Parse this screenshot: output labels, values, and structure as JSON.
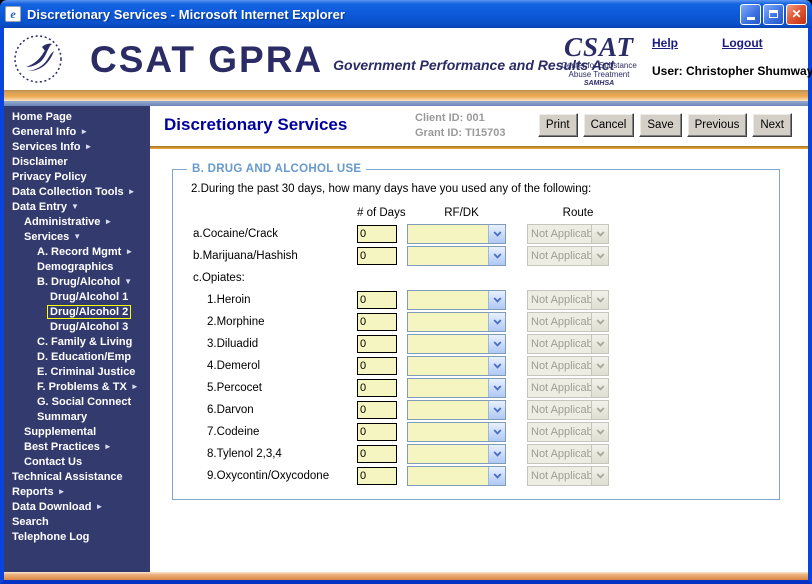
{
  "window": {
    "title": "Discretionary Services - Microsoft Internet Explorer"
  },
  "header": {
    "brand": "CSAT GPRA",
    "brand_subtitle": "Government Performance and Results Act",
    "csat_logo": {
      "acronym": "CSAT",
      "line1": "Center for Substance",
      "line2": "Abuse Treatment",
      "line3": "SAMHSA"
    },
    "help_label": "Help",
    "logout_label": "Logout",
    "user_label": "User: Christopher Shumway"
  },
  "sidebar": {
    "items": [
      {
        "label": "Home Page",
        "level": 0,
        "arrow": null,
        "selected": false
      },
      {
        "label": "General Info",
        "level": 0,
        "arrow": "right",
        "selected": false
      },
      {
        "label": "Services Info",
        "level": 0,
        "arrow": "right",
        "selected": false
      },
      {
        "label": "Disclaimer",
        "level": 0,
        "arrow": null,
        "selected": false
      },
      {
        "label": "Privacy Policy",
        "level": 0,
        "arrow": null,
        "selected": false
      },
      {
        "label": "Data Collection Tools",
        "level": 0,
        "arrow": "right",
        "selected": false
      },
      {
        "label": "Data Entry",
        "level": 0,
        "arrow": "down",
        "selected": false
      },
      {
        "label": "Administrative",
        "level": 1,
        "arrow": "right",
        "selected": false
      },
      {
        "label": "Services",
        "level": 1,
        "arrow": "down",
        "selected": false
      },
      {
        "label": "A. Record Mgmt",
        "level": 2,
        "arrow": "right",
        "selected": false
      },
      {
        "label": "Demographics",
        "level": 2,
        "arrow": null,
        "selected": false
      },
      {
        "label": "B. Drug/Alcohol",
        "level": 2,
        "arrow": "down",
        "selected": false
      },
      {
        "label": "Drug/Alcohol 1",
        "level": 3,
        "arrow": null,
        "selected": false
      },
      {
        "label": "Drug/Alcohol 2",
        "level": 3,
        "arrow": null,
        "selected": true
      },
      {
        "label": "Drug/Alcohol 3",
        "level": 3,
        "arrow": null,
        "selected": false
      },
      {
        "label": "C. Family & Living",
        "level": 2,
        "arrow": null,
        "selected": false
      },
      {
        "label": "D. Education/Emp",
        "level": 2,
        "arrow": null,
        "selected": false
      },
      {
        "label": "E. Criminal Justice",
        "level": 2,
        "arrow": null,
        "selected": false
      },
      {
        "label": "F. Problems & TX",
        "level": 2,
        "arrow": "right",
        "selected": false
      },
      {
        "label": "G. Social Connect",
        "level": 2,
        "arrow": null,
        "selected": false
      },
      {
        "label": "Summary",
        "level": 2,
        "arrow": null,
        "selected": false
      },
      {
        "label": "Supplemental",
        "level": 1,
        "arrow": null,
        "selected": false
      },
      {
        "label": "Best Practices",
        "level": 1,
        "arrow": "right",
        "selected": false
      },
      {
        "label": "Contact Us",
        "level": 1,
        "arrow": null,
        "selected": false
      },
      {
        "label": "Technical Assistance",
        "level": 0,
        "arrow": null,
        "selected": false
      },
      {
        "label": "Reports",
        "level": 0,
        "arrow": "right",
        "selected": false
      },
      {
        "label": "Data Download",
        "level": 0,
        "arrow": "right",
        "selected": false
      },
      {
        "label": "Search",
        "level": 0,
        "arrow": null,
        "selected": false
      },
      {
        "label": "Telephone Log",
        "level": 0,
        "arrow": null,
        "selected": false
      }
    ]
  },
  "page": {
    "title": "Discretionary Services",
    "client_id": "Client ID: 001",
    "grant_id": "Grant ID: TI15703"
  },
  "toolbar": {
    "buttons": [
      "Print",
      "Cancel",
      "Save",
      "Previous",
      "Next"
    ]
  },
  "form": {
    "section_title": "B. DRUG AND ALCOHOL USE",
    "question": "2.During the past 30 days, how many days have you used any of the following:",
    "columns": [
      "# of Days",
      "RF/DK",
      "Route"
    ],
    "rows": [
      {
        "label": "a.Cocaine/Crack",
        "indent": 0,
        "fields": true,
        "days": "0",
        "rfdk": "",
        "route": "Not Applicable"
      },
      {
        "label": "b.Marijuana/Hashish",
        "indent": 0,
        "fields": true,
        "days": "0",
        "rfdk": "",
        "route": "Not Applicable"
      },
      {
        "label": "c.Opiates:",
        "indent": 0,
        "fields": false
      },
      {
        "label": "1.Heroin",
        "indent": 1,
        "fields": true,
        "days": "0",
        "rfdk": "",
        "route": "Not Applicable"
      },
      {
        "label": "2.Morphine",
        "indent": 1,
        "fields": true,
        "days": "0",
        "rfdk": "",
        "route": "Not Applicable"
      },
      {
        "label": "3.Diluadid",
        "indent": 1,
        "fields": true,
        "days": "0",
        "rfdk": "",
        "route": "Not Applicable"
      },
      {
        "label": "4.Demerol",
        "indent": 1,
        "fields": true,
        "days": "0",
        "rfdk": "",
        "route": "Not Applicable"
      },
      {
        "label": "5.Percocet",
        "indent": 1,
        "fields": true,
        "days": "0",
        "rfdk": "",
        "route": "Not Applicable"
      },
      {
        "label": "6.Darvon",
        "indent": 1,
        "fields": true,
        "days": "0",
        "rfdk": "",
        "route": "Not Applicable"
      },
      {
        "label": "7.Codeine",
        "indent": 1,
        "fields": true,
        "days": "0",
        "rfdk": "",
        "route": "Not Applicable"
      },
      {
        "label": "8.Tylenol 2,3,4",
        "indent": 1,
        "fields": true,
        "days": "0",
        "rfdk": "",
        "route": "Not Applicable"
      },
      {
        "label": "9.Oxycontin/Oxycodone",
        "indent": 1,
        "fields": true,
        "days": "0",
        "rfdk": "",
        "route": "Not Applicable"
      }
    ]
  },
  "colors": {
    "titlebar_blue": "#0d5bdc",
    "window_border_blue": "#0844dd",
    "sidebar_navy": "#333a6e",
    "accent_gold": "#eda648",
    "bottom_bar_orange": "#e39a5e",
    "input_yellow": "#f5f5c1",
    "selected_highlight_yellow": "#ffff00",
    "brand_navy": "#2b2b66",
    "page_title_blue": "#0000a0",
    "legend_blue": "#6699cc",
    "disabled_gray": "#edede3",
    "disabled_text_gray": "#9e9e96"
  }
}
